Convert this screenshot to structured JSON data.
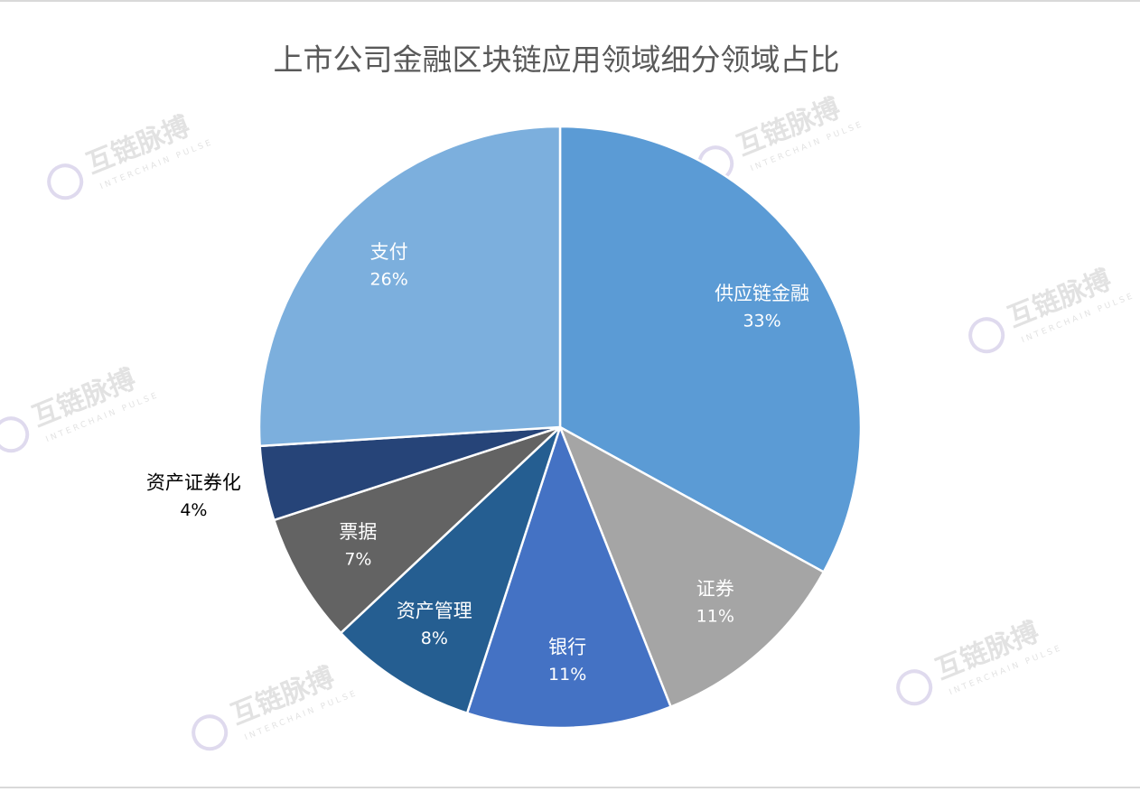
{
  "chart_data": {
    "type": "pie",
    "title": "上市公司金融区块链应用领域细分领域占比",
    "categories": [
      "供应链金融",
      "证券",
      "银行",
      "资产管理",
      "票据",
      "资产证券化",
      "支付"
    ],
    "values": [
      33,
      11,
      11,
      8,
      7,
      4,
      26
    ],
    "value_labels": [
      "33%",
      "11%",
      "11%",
      "8%",
      "7%",
      "4%",
      "26%"
    ],
    "colors": [
      "#5b9bd5",
      "#a5a5a5",
      "#4472c4",
      "#255e91",
      "#636363",
      "#264478",
      "#7cafdd"
    ]
  },
  "watermark": {
    "name": "互链脉搏",
    "tagline": "INTERCHAIN PULSE"
  }
}
